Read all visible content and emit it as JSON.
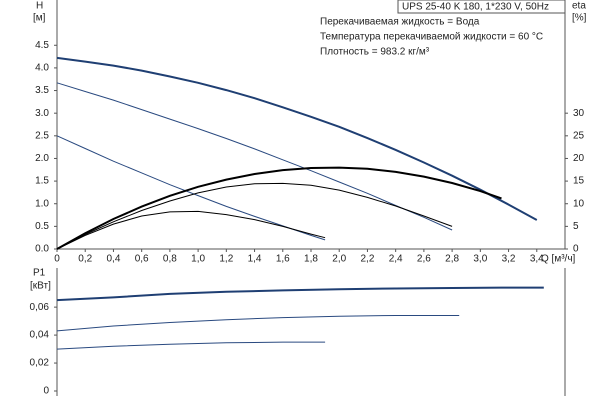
{
  "chart_data": [
    {
      "type": "line",
      "title": "UPS 25-40 K 180, 1*230 V, 50Hz",
      "annotations": [
        "Перекачиваемая жидкость = Вода",
        "Температура перекачиваемой жидкости = 60 °C",
        "Плотность = 983.2 кг/м³"
      ],
      "ylabel": "H",
      "ylabel_unit": "[м]",
      "y2label": "eta",
      "y2label_unit": "[%]",
      "xlabel": "Q [м³/ч]",
      "xlim": [
        0,
        3.6
      ],
      "xticks": [
        0,
        {
          "value": 0.2,
          "label": "0,2"
        },
        {
          "value": 0.4,
          "label": "0,4"
        },
        {
          "value": 0.6,
          "label": "0,6"
        },
        {
          "value": 0.8,
          "label": "0,8"
        },
        {
          "value": 1,
          "label": "1,0"
        },
        {
          "value": 1.2,
          "label": "1,2"
        },
        {
          "value": 1.4,
          "label": "1,4"
        },
        {
          "value": 1.6,
          "label": "1,6"
        },
        {
          "value": 1.8,
          "label": "1,8"
        },
        {
          "value": 2,
          "label": "2,0"
        },
        {
          "value": 2.2,
          "label": "2,2"
        },
        {
          "value": 2.4,
          "label": "2,4"
        },
        {
          "value": 2.6,
          "label": "2,6"
        },
        {
          "value": 2.8,
          "label": "2,8"
        },
        {
          "value": 3,
          "label": "3,0"
        },
        {
          "value": 3.2,
          "label": "3,2"
        },
        {
          "value": 3.4,
          "label": "3,4"
        }
      ],
      "ylim": [
        0,
        5.5
      ],
      "yticks": [
        {
          "value": 0,
          "label": "0.0"
        },
        0.5,
        {
          "value": 1,
          "label": "1.0"
        },
        1.5,
        {
          "value": 2,
          "label": "2.0"
        },
        2.5,
        {
          "value": 3,
          "label": "3.0"
        },
        3.5,
        {
          "value": 4,
          "label": "4.0"
        },
        4.5
      ],
      "y2lim": [
        0,
        55
      ],
      "y2ticks": [
        0,
        5,
        10,
        15,
        20,
        25,
        30
      ],
      "series": [
        {
          "color": "#1f3f73",
          "line_width": 2,
          "x": [
            0,
            0.2,
            0.4,
            0.6,
            0.8,
            1,
            1.2,
            1.4,
            1.6,
            1.8,
            2,
            2.2,
            2.4,
            2.6,
            2.8,
            3,
            3.2,
            3.4
          ],
          "values": [
            4.22,
            4.14,
            4.05,
            3.94,
            3.81,
            3.67,
            3.51,
            3.33,
            3.13,
            2.92,
            2.7,
            2.45,
            2.19,
            1.91,
            1.62,
            1.31,
            0.98,
            0.64
          ]
        },
        {
          "color": "#2a4a80",
          "line_width": 1,
          "x": [
            0,
            0.2,
            0.4,
            0.6,
            0.8,
            1,
            1.2,
            1.4,
            1.6,
            1.8,
            2,
            2.2,
            2.4,
            2.6,
            2.8
          ],
          "values": [
            3.67,
            3.48,
            3.29,
            3.08,
            2.87,
            2.66,
            2.44,
            2.21,
            1.97,
            1.73,
            1.48,
            1.23,
            0.96,
            0.7,
            0.42
          ]
        },
        {
          "color": "#2a4a80",
          "line_width": 1,
          "x": [
            0,
            0.2,
            0.4,
            0.6,
            0.8,
            1,
            1.2,
            1.4,
            1.6,
            1.8,
            1.9
          ],
          "values": [
            2.5,
            2.22,
            1.94,
            1.68,
            1.42,
            1.18,
            0.94,
            0.72,
            0.51,
            0.3,
            0.2
          ]
        },
        {
          "color": "#000000",
          "line_width": 2,
          "axis": "y2",
          "x": [
            0,
            0.2,
            0.4,
            0.6,
            0.8,
            1,
            1.2,
            1.4,
            1.6,
            1.8,
            2,
            2.2,
            2.4,
            2.6,
            2.8,
            3,
            3.15
          ],
          "values": [
            0,
            3.5,
            6.63,
            9.37,
            11.74,
            13.73,
            15.34,
            16.57,
            17.42,
            17.89,
            17.99,
            17.71,
            17.04,
            16,
            14.58,
            12.78,
            11.18
          ]
        },
        {
          "color": "#000000",
          "line_width": 1,
          "axis": "y2",
          "x": [
            0,
            0.2,
            0.4,
            0.6,
            0.8,
            1,
            1.2,
            1.4,
            1.6,
            1.8,
            2,
            2.2,
            2.4,
            2.6,
            2.8
          ],
          "values": [
            0,
            3.2,
            6,
            8.5,
            10.6,
            12.4,
            13.7,
            14.4,
            14.5,
            14.1,
            13,
            11.4,
            9.5,
            7.3,
            5
          ]
        },
        {
          "color": "#000000",
          "line_width": 1,
          "axis": "y2",
          "x": [
            0,
            0.2,
            0.4,
            0.6,
            0.8,
            1,
            1.2,
            1.4,
            1.6,
            1.8,
            1.9
          ],
          "values": [
            0,
            3,
            5.5,
            7.3,
            8.2,
            8.3,
            7.6,
            6.5,
            5,
            3.3,
            2.5
          ]
        }
      ]
    },
    {
      "type": "line",
      "ylabel": "P1",
      "ylabel_unit": "[кВт]",
      "xlim": [
        0,
        3.6
      ],
      "ylim": [
        0,
        0.088
      ],
      "yticks": [
        0,
        {
          "value": 0.02,
          "label": "0,02"
        },
        {
          "value": 0.04,
          "label": "0,04"
        },
        {
          "value": 0.06,
          "label": "0,06"
        }
      ],
      "series": [
        {
          "color": "#1f3f73",
          "line_width": 2,
          "x": [
            0,
            0.4,
            0.8,
            1.2,
            1.6,
            2,
            2.4,
            2.8,
            3.15,
            3.45
          ],
          "values": [
            0.065,
            0.067,
            0.0695,
            0.071,
            0.072,
            0.0728,
            0.0733,
            0.0737,
            0.074,
            0.074
          ]
        },
        {
          "color": "#2a4a80",
          "line_width": 1,
          "x": [
            0,
            0.4,
            0.8,
            1.2,
            1.6,
            2,
            2.4,
            2.85
          ],
          "values": [
            0.043,
            0.0465,
            0.049,
            0.051,
            0.0525,
            0.0535,
            0.054,
            0.054
          ]
        },
        {
          "color": "#2a4a80",
          "line_width": 1,
          "x": [
            0,
            0.4,
            0.8,
            1.2,
            1.6,
            1.9
          ],
          "values": [
            0.03,
            0.032,
            0.0335,
            0.0345,
            0.035,
            0.035
          ]
        }
      ]
    }
  ]
}
